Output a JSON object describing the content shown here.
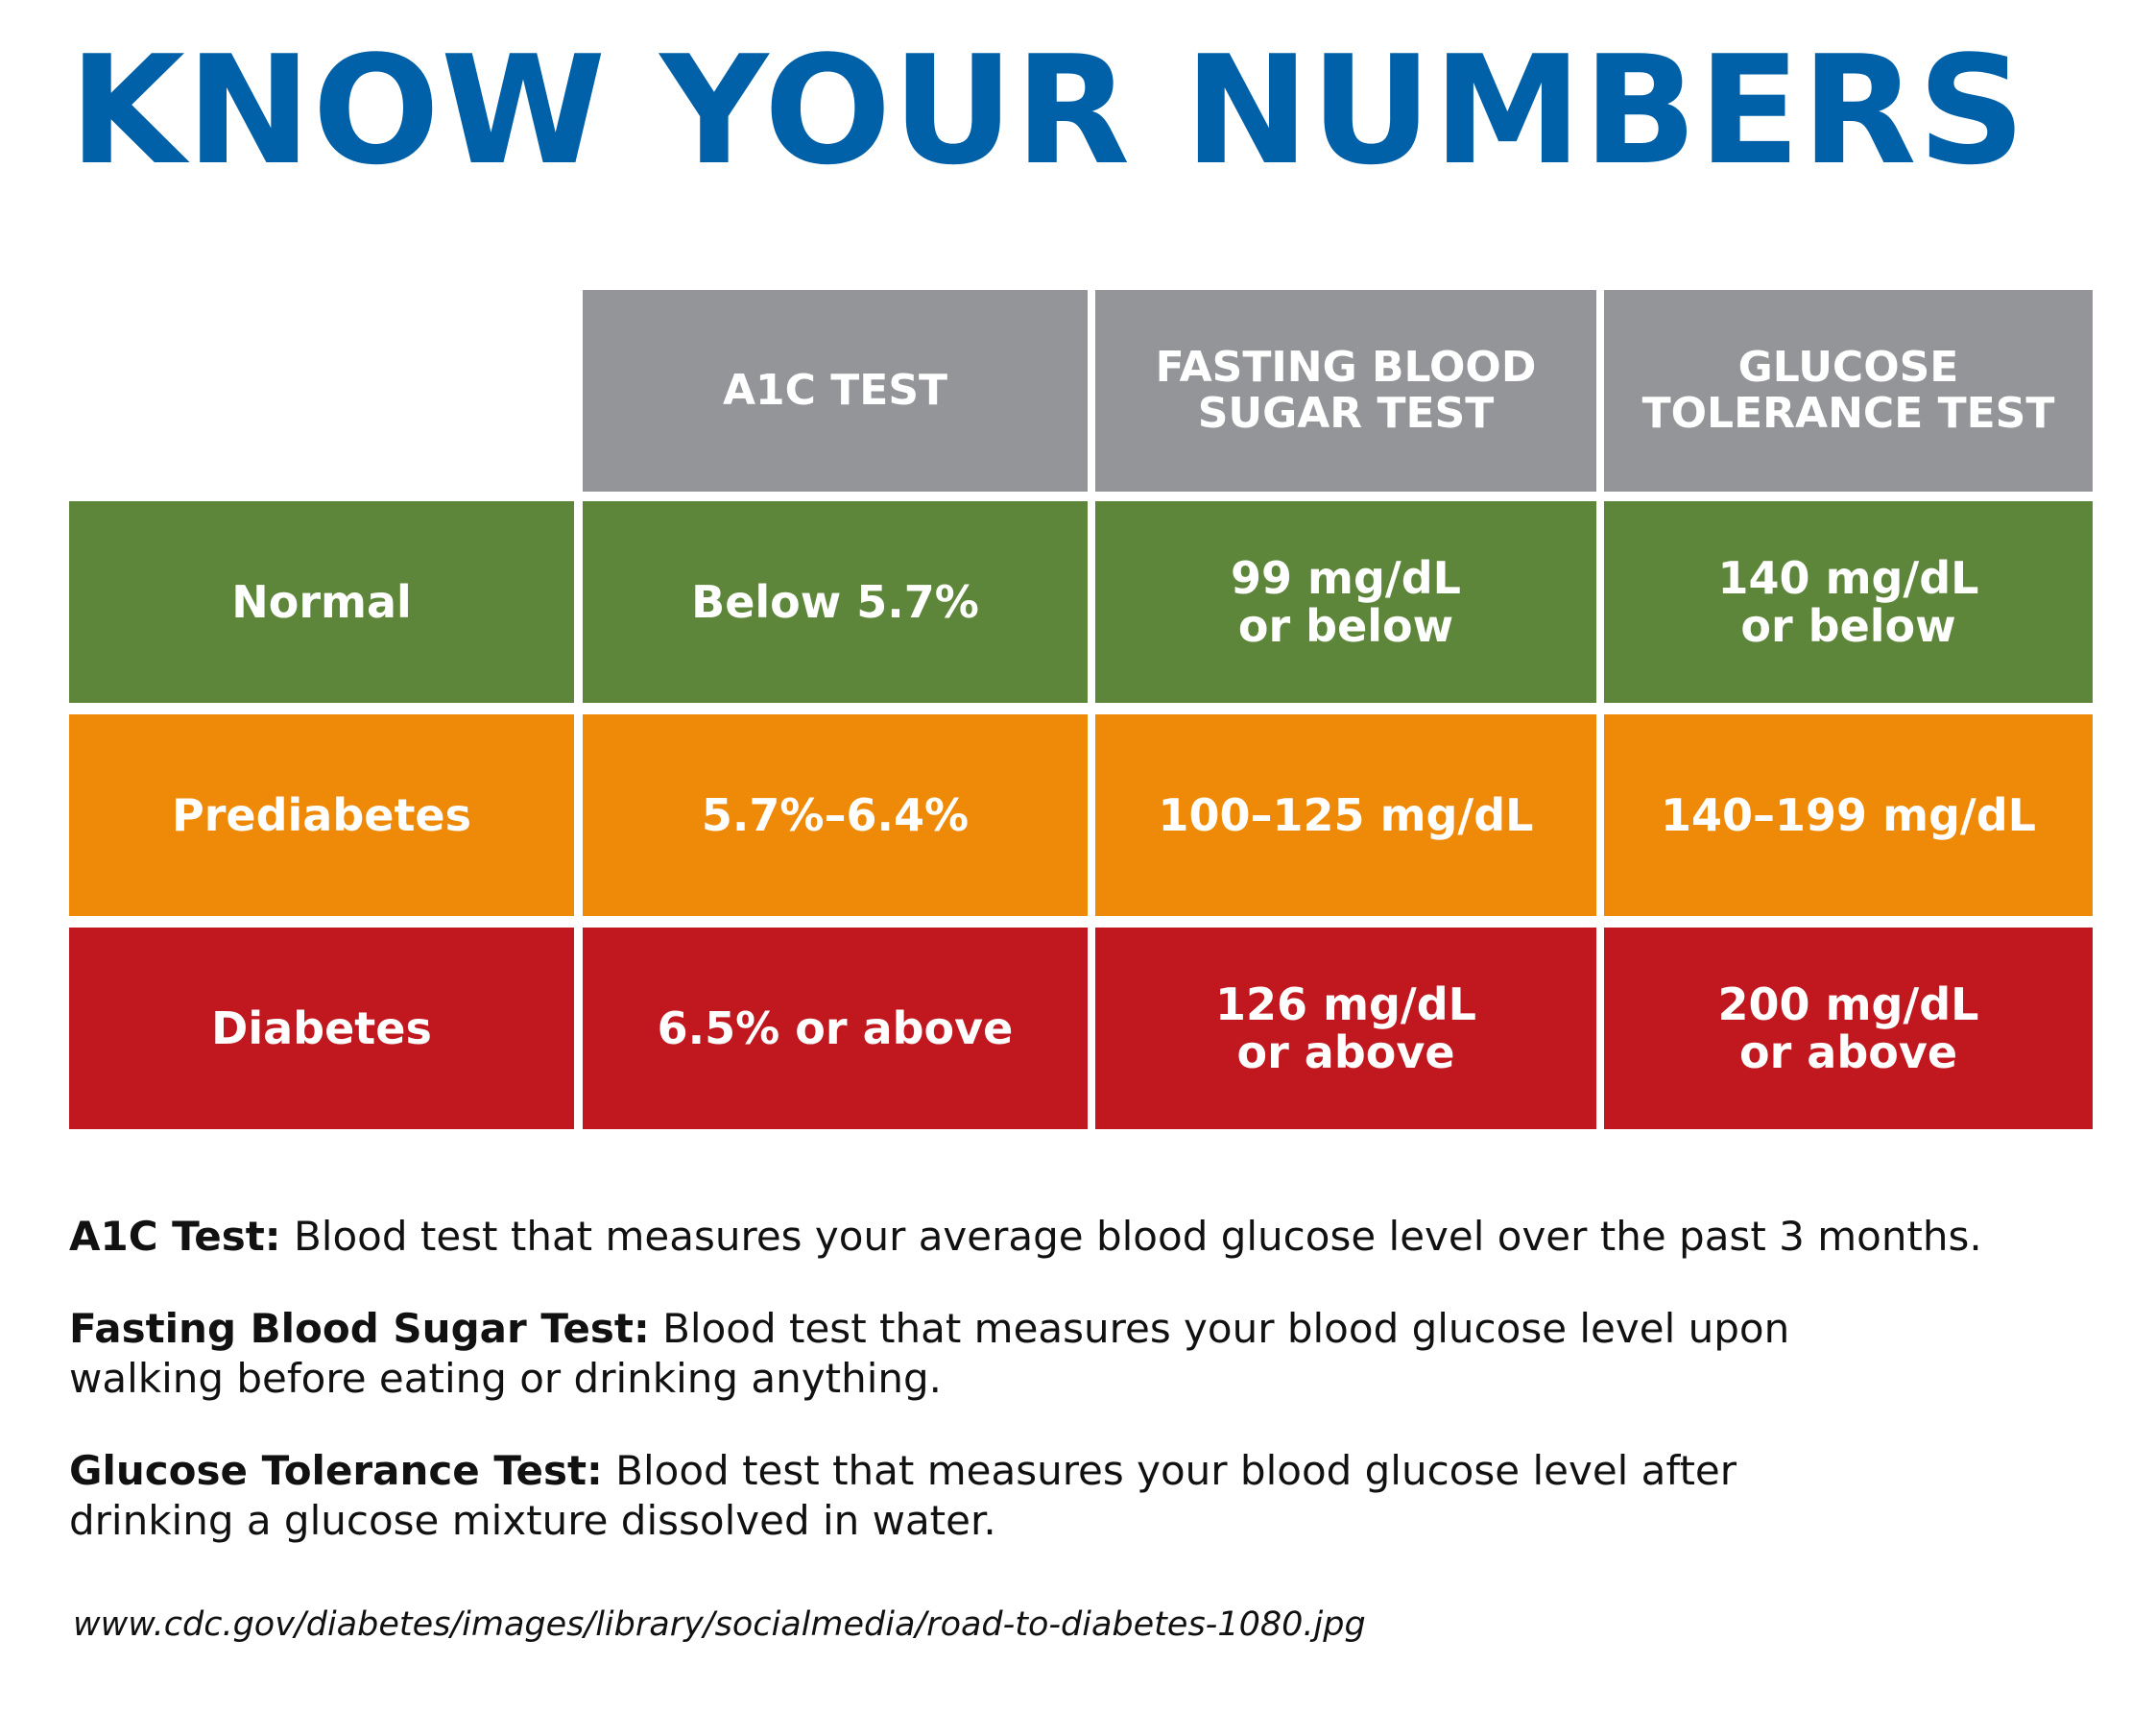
{
  "title": "KNOW YOUR NUMBERS",
  "colors": {
    "title": "#0061A8",
    "header": "#939598",
    "normal": "#5E863B",
    "prediabetes": "#EF8A08",
    "diabetes": "#C1171F"
  },
  "table": {
    "headers": [
      "A1C TEST",
      "FASTING BLOOD\nSUGAR TEST",
      "GLUCOSE\nTOLERANCE TEST"
    ],
    "rows": [
      {
        "label": "Normal",
        "values": [
          "Below 5.7%",
          "99 mg/dL\nor below",
          "140 mg/dL\nor below"
        ]
      },
      {
        "label": "Prediabetes",
        "values": [
          "5.7%–6.4%",
          "100–125 mg/dL",
          "140–199 mg/dL"
        ]
      },
      {
        "label": "Diabetes",
        "values": [
          "6.5% or above",
          "126 mg/dL\nor above",
          "200 mg/dL\nor above"
        ]
      }
    ]
  },
  "definitions": [
    {
      "term": "A1C Test:",
      "text": " Blood test that measures your average blood glucose level over the past 3 months."
    },
    {
      "term": "Fasting Blood Sugar Test:",
      "text": " Blood test that measures your blood glucose level upon walking before eating or drinking anything."
    },
    {
      "term": "Glucose Tolerance Test:",
      "text": " Blood test that measures your blood glucose level after drinking a glucose mixture dissolved in water."
    }
  ],
  "source": "www.cdc.gov/diabetes/images/library/socialmedia/road-to-diabetes-1080.jpg"
}
